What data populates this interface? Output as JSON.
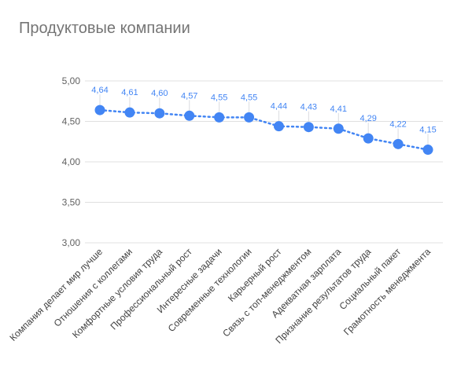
{
  "chart_data": {
    "type": "line",
    "title": "Продуктовые компании",
    "xlabel": "",
    "ylabel": "",
    "ylim": [
      3.0,
      5.0
    ],
    "yticks": [
      "3,00",
      "3,50",
      "4,00",
      "4,50",
      "5,00"
    ],
    "ytick_values": [
      3.0,
      3.5,
      4.0,
      4.5,
      5.0
    ],
    "grid": true,
    "color": "#4285f4",
    "categories": [
      "Компания делает мир лучше",
      "Отношения с коллегами",
      "Комфортные условия труда",
      "Профессиональный рост",
      "Интересные задачи",
      "Современные технологии",
      "Карьерный рост",
      "Связь с топ-менеджментом",
      "Адекватная зарплата",
      "Признание результатов труда",
      "Социальный пакет",
      "Грамотность менеджмента"
    ],
    "values": [
      4.64,
      4.61,
      4.6,
      4.57,
      4.55,
      4.55,
      4.44,
      4.43,
      4.41,
      4.29,
      4.22,
      4.15
    ],
    "data_labels": [
      "4,64",
      "4,61",
      "4,60",
      "4,57",
      "4,55",
      "4,55",
      "4,44",
      "4,43",
      "4,41",
      "4,29",
      "4,22",
      "4,15"
    ]
  }
}
